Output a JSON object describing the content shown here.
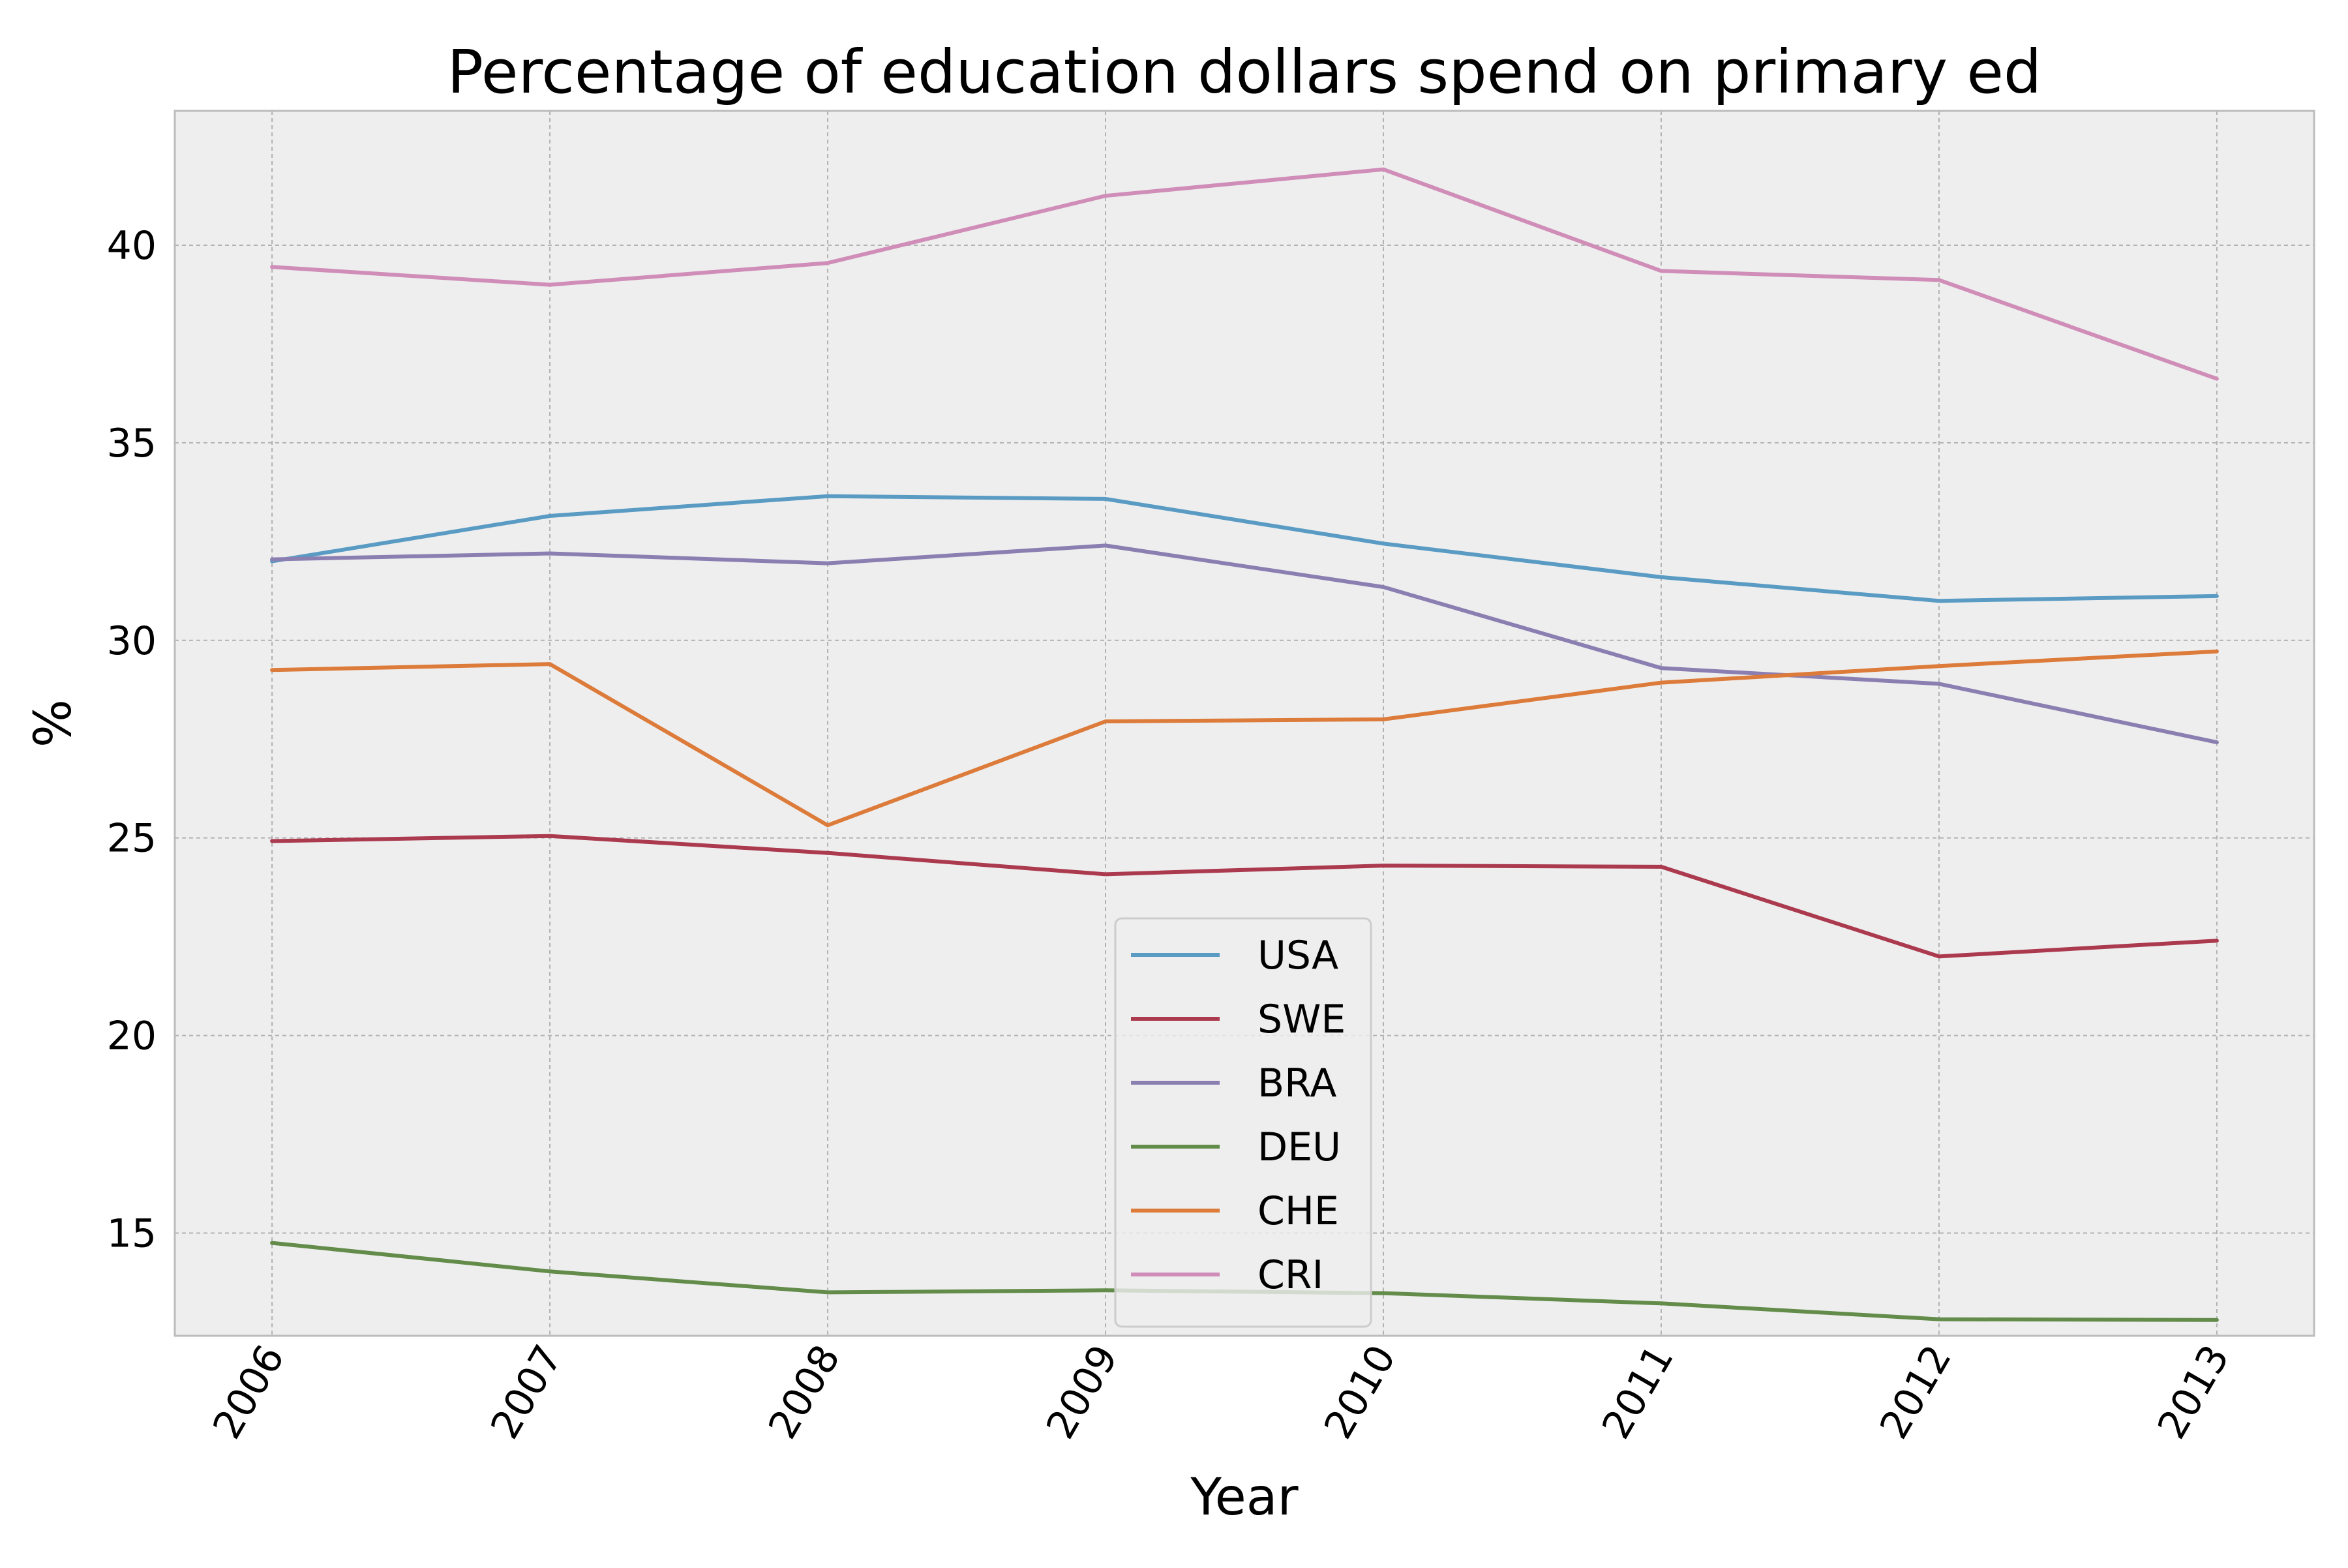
{
  "chart_data": {
    "type": "line",
    "title": "Percentage of education dollars spend on primary ed",
    "xlabel": "Year",
    "ylabel": "%",
    "x": [
      2006,
      2007,
      2008,
      2009,
      2010,
      2011,
      2012,
      2013
    ],
    "x_tick_labels": [
      "2006",
      "2007",
      "2008",
      "2009",
      "2010",
      "2011",
      "2012",
      "2013"
    ],
    "y_ticks": [
      15,
      20,
      25,
      30,
      35,
      40
    ],
    "y_tick_labels": [
      "15",
      "20",
      "25",
      "30",
      "35",
      "40"
    ],
    "xlim": [
      2005.65,
      2013.35
    ],
    "ylim": [
      12.4,
      43.4
    ],
    "grid": true,
    "legend_position": "lower-center",
    "style": {
      "plot_background": "#eeeeee",
      "grid_color": "#b2b2b2",
      "frame_color": "#bcbcbc",
      "legend_background": "#eeeeee"
    },
    "series": [
      {
        "name": "USA",
        "color": "#5a9bc4",
        "values": [
          32.0,
          33.15,
          33.65,
          33.58,
          32.45,
          31.6,
          31.0,
          31.12
        ]
      },
      {
        "name": "SWE",
        "color": "#ab3a4f",
        "values": [
          24.92,
          25.05,
          24.62,
          24.08,
          24.3,
          24.27,
          22.0,
          22.4
        ]
      },
      {
        "name": "BRA",
        "color": "#8b7fb2",
        "values": [
          32.05,
          32.2,
          31.95,
          32.4,
          31.35,
          29.3,
          28.9,
          27.42
        ]
      },
      {
        "name": "DEU",
        "color": "#638c4b",
        "values": [
          14.75,
          14.03,
          13.5,
          13.55,
          13.48,
          13.22,
          12.82,
          12.8
        ]
      },
      {
        "name": "CHE",
        "color": "#dc7b3a",
        "values": [
          29.25,
          29.4,
          25.32,
          27.95,
          28.0,
          28.93,
          29.35,
          29.72
        ]
      },
      {
        "name": "CRI",
        "color": "#cf8db8",
        "values": [
          39.45,
          39.0,
          39.55,
          41.25,
          41.92,
          39.35,
          39.12,
          36.62
        ]
      }
    ]
  }
}
